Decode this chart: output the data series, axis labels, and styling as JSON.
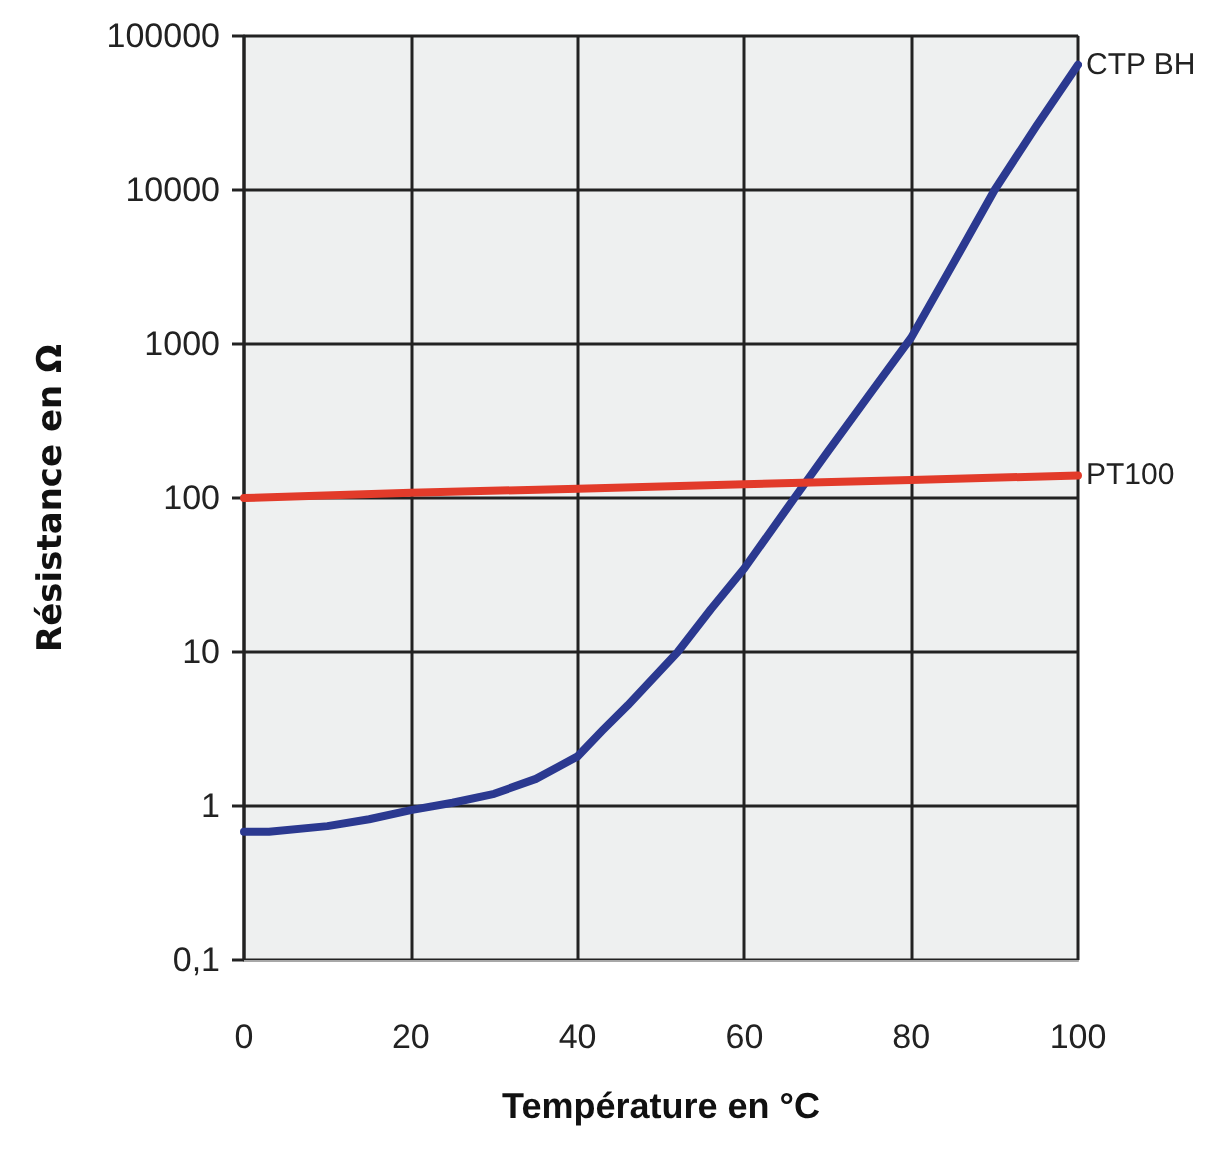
{
  "chart_data": {
    "type": "line",
    "xlabel": "Température en °C",
    "ylabel": "Résistance en Ω",
    "x": [
      0,
      3,
      10,
      15,
      20,
      25,
      30,
      35,
      40,
      43,
      46,
      52,
      56,
      60,
      66,
      70,
      75,
      80,
      85,
      90,
      95,
      100
    ],
    "series": [
      {
        "name": "CTP BH",
        "color": "#2b3990",
        "values": [
          0.68,
          0.68,
          0.74,
          0.82,
          0.94,
          1.05,
          1.2,
          1.5,
          2.1,
          3.1,
          4.5,
          10,
          19,
          35,
          100,
          200,
          470,
          1100,
          3300,
          10000,
          26000,
          65000
        ]
      },
      {
        "name": "PT100",
        "color": "#e23b2a",
        "x": [
          0,
          20,
          40,
          60,
          80,
          100
        ],
        "values": [
          100,
          108,
          115,
          123,
          131,
          140
        ]
      }
    ],
    "xlim": [
      0,
      100
    ],
    "xticks": [
      0,
      20,
      40,
      60,
      80,
      100
    ],
    "ylim": [
      0.1,
      100000
    ],
    "yticks": [
      {
        "value": 0.1,
        "label": "0,1"
      },
      1,
      10,
      100,
      1000,
      10000,
      100000
    ],
    "log": true,
    "grid": true,
    "legend": false,
    "marker": "none",
    "line_style": "solid"
  }
}
